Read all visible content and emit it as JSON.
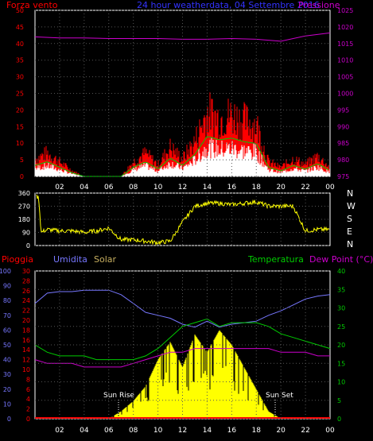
{
  "header": {
    "left_label": "Forza vento",
    "title": "24 hour weatherdata, 04 Settembre 2016",
    "right_label": "Pressione"
  },
  "time_ticks": [
    "02",
    "04",
    "06",
    "08",
    "10",
    "12",
    "14",
    "16",
    "18",
    "20",
    "22",
    "00"
  ],
  "colors": {
    "wind": "#ff0000",
    "gust_green": "#00cc00",
    "wind_avg": "#ffffff",
    "pressure": "#cc00cc",
    "direction": "#ffff00",
    "humidity": "#7777ff",
    "solar": "#ffff00",
    "temperature": "#00cc00",
    "dewpoint": "#cc00cc",
    "rain": "#ff0000",
    "axis": "#ffffff",
    "grid": "#555555"
  },
  "panel_wind": {
    "left_ticks": [
      "0",
      "5",
      "10",
      "15",
      "20",
      "25",
      "30",
      "35",
      "40",
      "45",
      "50"
    ],
    "right_ticks": [
      "975",
      "980",
      "985",
      "990",
      "995",
      "1000",
      "1005",
      "1010",
      "1015",
      "1020",
      "1025"
    ]
  },
  "panel_dir": {
    "left_ticks": [
      "0",
      "90",
      "180",
      "270",
      "360"
    ],
    "right_labels": [
      "N",
      "W",
      "S",
      "E",
      "N"
    ]
  },
  "panel_env": {
    "legend": {
      "rain": "Pioggia",
      "humidity": "Umidita",
      "solar": "Solar",
      "temperature": "Temperatura",
      "dewpoint": "Dew Point (°C)"
    },
    "humidity_ticks": [
      "0",
      "10",
      "20",
      "30",
      "40",
      "50",
      "60",
      "70",
      "80",
      "90",
      "100"
    ],
    "rain_ticks": [
      "0",
      "2",
      "4",
      "6",
      "8",
      "10",
      "12",
      "14",
      "16",
      "18",
      "20",
      "22",
      "24",
      "26",
      "28",
      "30"
    ],
    "temp_ticks": [
      "0",
      "5",
      "10",
      "15",
      "20",
      "25",
      "30",
      "35",
      "40"
    ],
    "sun_rise": "Sun Rise",
    "sun_set": "Sun Set",
    "sun_set_time": "Sun Set"
  },
  "chart_data": [
    {
      "type": "line",
      "title": "24 hour weatherdata, 04 Settembre 2016",
      "x_unit": "hour",
      "xlim": [
        0,
        24
      ],
      "ylim_left": [
        0,
        50
      ],
      "ylim_right": [
        975,
        1025
      ],
      "series": [
        {
          "name": "Forza vento",
          "x": [
            0,
            1,
            2,
            3,
            4,
            5,
            6,
            7,
            8,
            9,
            10,
            11,
            12,
            13,
            14,
            15,
            16,
            17,
            18,
            19,
            20,
            21,
            22,
            23,
            24
          ],
          "values": [
            6,
            8,
            5,
            2,
            0,
            0,
            0,
            0,
            5,
            8,
            4,
            10,
            6,
            12,
            22,
            20,
            21,
            19,
            18,
            5,
            3,
            6,
            4,
            7,
            3
          ]
        },
        {
          "name": "Pressione",
          "x": [
            0,
            2,
            4,
            6,
            8,
            10,
            12,
            14,
            16,
            18,
            20,
            22,
            24
          ],
          "values": [
            1017,
            1016.7,
            1016.7,
            1016.5,
            1016.5,
            1016.5,
            1016.3,
            1016.3,
            1016.5,
            1016.3,
            1015.7,
            1017.3,
            1018.2
          ]
        }
      ]
    },
    {
      "type": "line",
      "title": "",
      "x_unit": "hour",
      "xlim": [
        0,
        24
      ],
      "ylim": [
        0,
        360
      ],
      "series": [
        {
          "name": "Wind direction",
          "x": [
            0,
            0.3,
            0.5,
            1,
            2,
            3,
            4,
            5,
            6,
            7,
            8,
            9,
            10,
            11,
            12,
            13,
            14,
            15,
            16,
            17,
            18,
            19,
            20,
            21,
            22,
            23,
            24
          ],
          "values": [
            340,
            330,
            90,
            110,
            100,
            100,
            90,
            100,
            120,
            40,
            40,
            30,
            20,
            30,
            160,
            270,
            290,
            290,
            280,
            290,
            300,
            270,
            270,
            270,
            100,
            110,
            110
          ]
        }
      ]
    },
    {
      "type": "line",
      "title": "",
      "x_unit": "hour",
      "xlim": [
        0,
        24
      ],
      "ylim_humidity": [
        0,
        100
      ],
      "ylim_temp": [
        0,
        40
      ],
      "series": [
        {
          "name": "Umidita",
          "x": [
            0,
            1,
            2,
            3,
            4,
            5,
            6,
            7,
            8,
            9,
            10,
            11,
            12,
            13,
            14,
            15,
            16,
            17,
            18,
            19,
            20,
            21,
            22,
            23,
            24
          ],
          "values": [
            78,
            85,
            86,
            86,
            87,
            87,
            87,
            84,
            78,
            72,
            70,
            68,
            64,
            62,
            66,
            62,
            64,
            65,
            66,
            70,
            73,
            77,
            81,
            83,
            84
          ]
        },
        {
          "name": "Temperatura",
          "x": [
            0,
            1,
            2,
            3,
            4,
            5,
            6,
            7,
            8,
            9,
            10,
            11,
            12,
            13,
            14,
            15,
            16,
            17,
            18,
            19,
            20,
            21,
            22,
            23,
            24
          ],
          "values": [
            20,
            18,
            17,
            17,
            17,
            16,
            16,
            16,
            16,
            17,
            19,
            22,
            25,
            26,
            27,
            25,
            26,
            26,
            26,
            25,
            23,
            22,
            21,
            20,
            19
          ]
        },
        {
          "name": "Dew Point (°C)",
          "x": [
            0,
            1,
            2,
            3,
            4,
            5,
            6,
            7,
            8,
            9,
            10,
            11,
            12,
            13,
            14,
            15,
            16,
            17,
            18,
            19,
            20,
            21,
            22,
            23,
            24
          ],
          "values": [
            16,
            15,
            15,
            15,
            14,
            14,
            14,
            14,
            15,
            16,
            17,
            18,
            18,
            19,
            19,
            19,
            19,
            19,
            19,
            19,
            18,
            18,
            18,
            17,
            17
          ]
        },
        {
          "name": "Solar",
          "x": [
            6,
            7,
            8,
            9,
            10,
            11,
            12,
            13,
            14,
            15,
            16,
            17,
            18,
            19,
            20
          ],
          "values": [
            0,
            5,
            12,
            22,
            40,
            52,
            35,
            57,
            45,
            60,
            50,
            35,
            20,
            5,
            0
          ]
        },
        {
          "name": "Pioggia",
          "x": [
            0,
            24
          ],
          "values": [
            0,
            0
          ]
        }
      ]
    }
  ]
}
